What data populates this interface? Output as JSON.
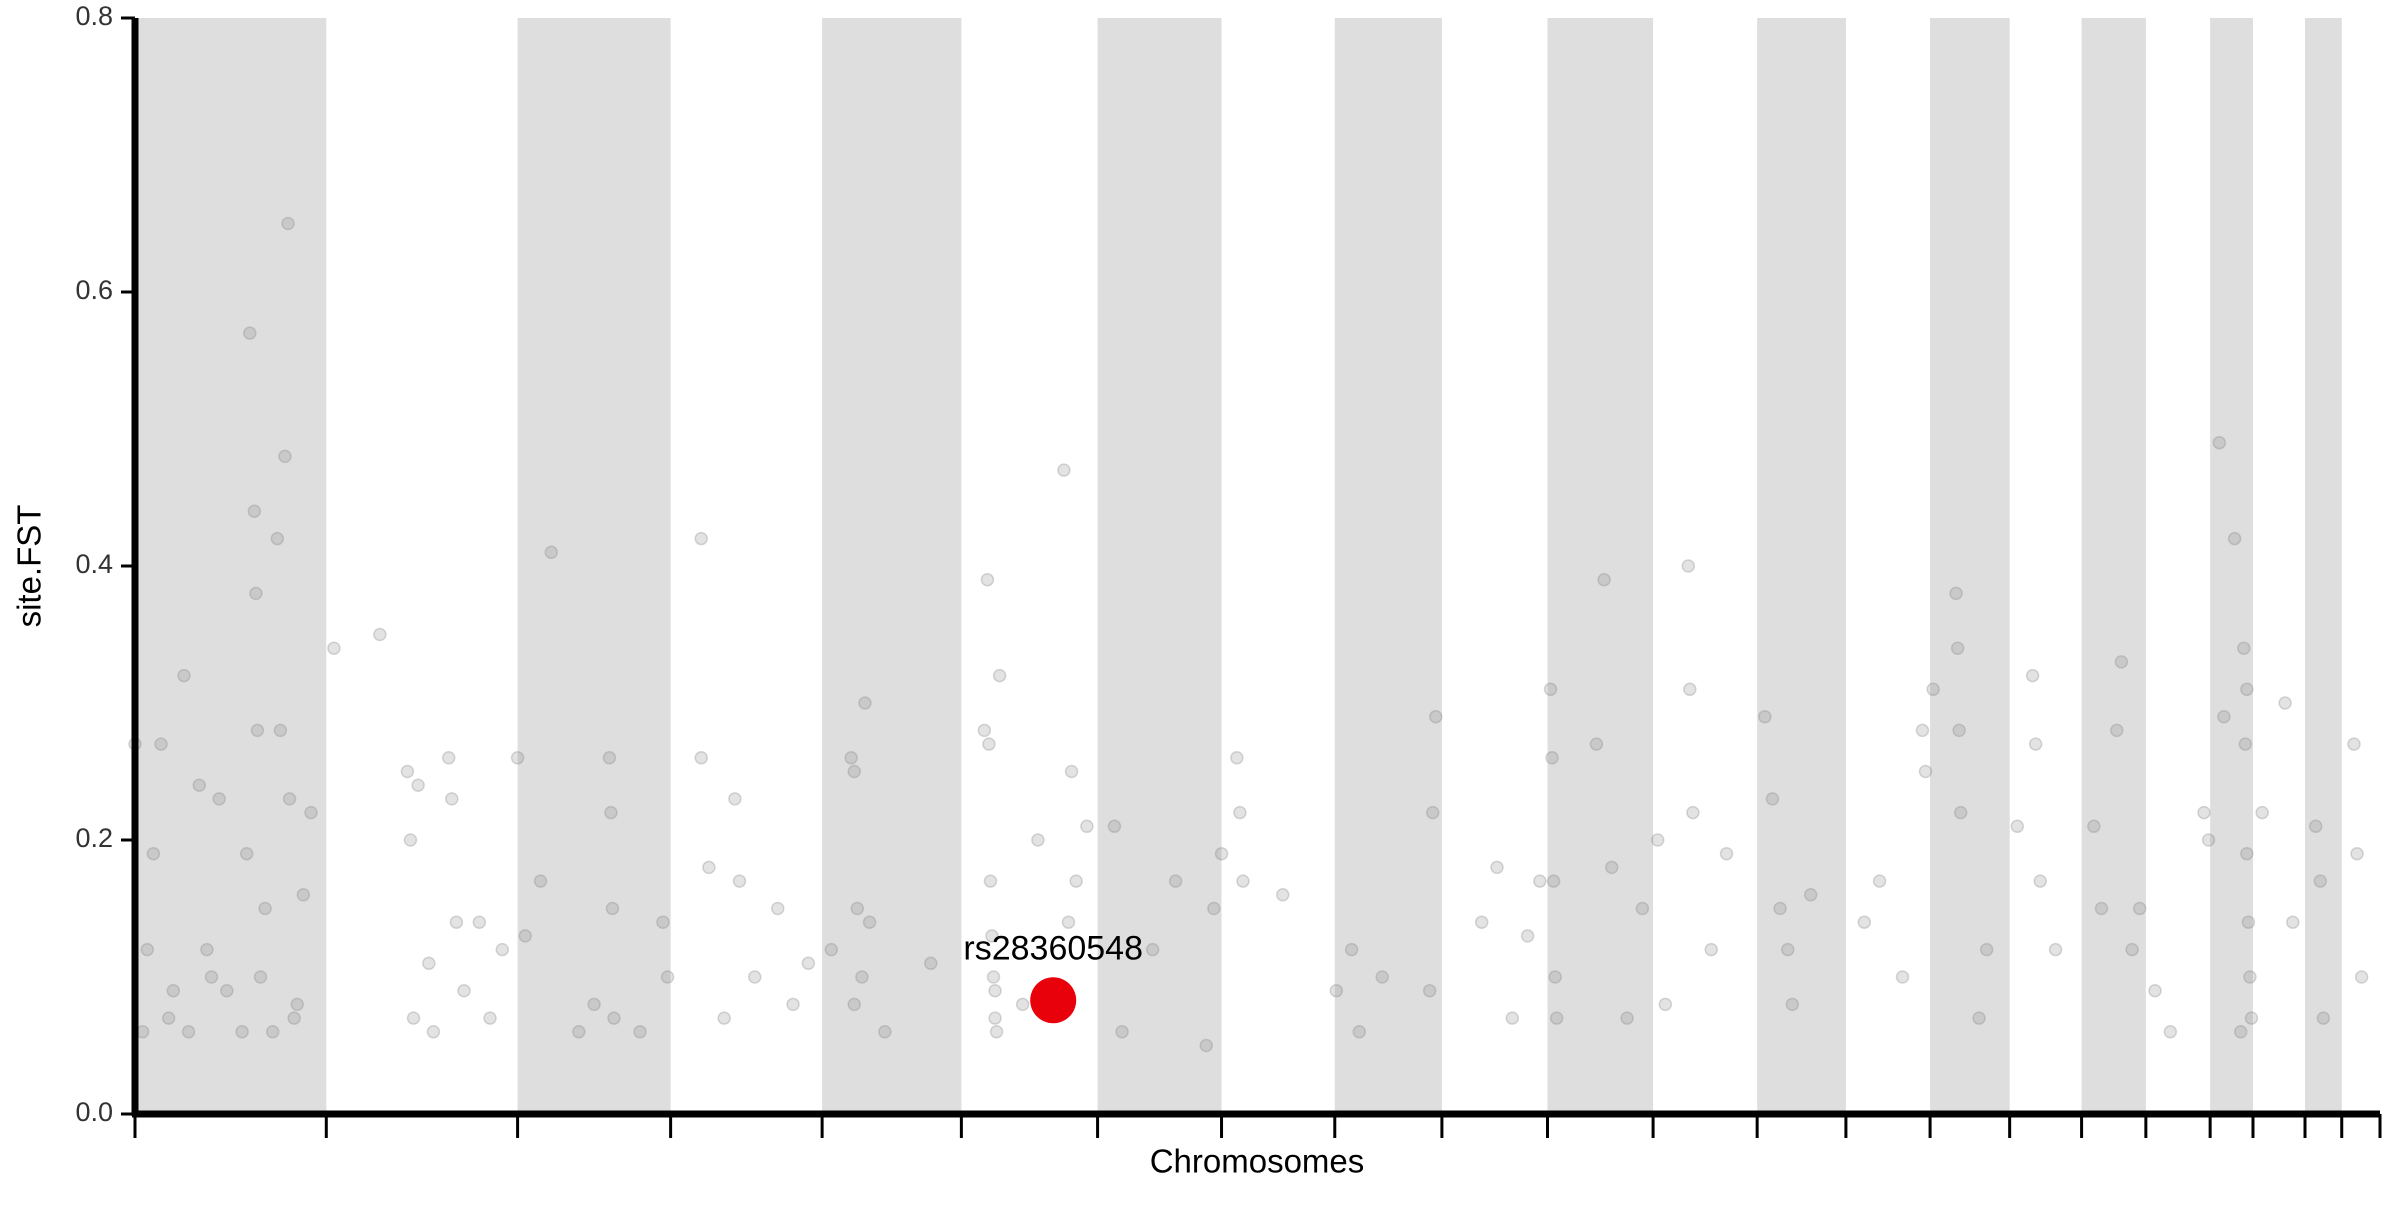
{
  "chart_data": {
    "type": "scatter",
    "y_label": "site.FST",
    "x_label": "Chromosomes",
    "xlim": [
      0,
      1467
    ],
    "ylim": [
      0,
      0.8
    ],
    "yticks": [
      {
        "value": 0,
        "label": "0.0"
      },
      0.2,
      0.4,
      0.6,
      0.8
    ],
    "chromosome_bounds": [
      0,
      125,
      250,
      350,
      449,
      540,
      629,
      710,
      784,
      854,
      923,
      992,
      1060,
      1118,
      1173,
      1225,
      1272,
      1314,
      1356,
      1384,
      1418,
      1442,
      1467
    ],
    "band_color": "#dedede",
    "point_color": "#808080",
    "x": [
      0,
      5,
      8,
      12,
      17,
      22,
      25,
      32,
      35,
      42,
      47,
      50,
      55,
      70,
      75,
      78,
      79,
      80,
      82,
      85,
      93,
      95,
      98,
      100,
      101,
      104,
      106,
      110,
      115,
      73,
      90,
      60,
      130,
      160,
      178,
      180,
      182,
      185,
      192,
      205,
      207,
      210,
      215,
      225,
      240,
      232,
      195,
      250,
      255,
      265,
      272,
      290,
      300,
      310,
      311,
      312,
      313,
      330,
      345,
      348,
      370,
      370,
      375,
      385,
      392,
      395,
      405,
      420,
      430,
      440,
      455,
      468,
      470,
      472,
      477,
      480,
      470,
      475,
      490,
      520,
      555,
      557,
      558,
      559,
      560,
      561,
      562,
      563,
      565,
      562,
      580,
      590,
      607,
      612,
      615,
      622,
      610,
      640,
      645,
      665,
      680,
      700,
      705,
      710,
      720,
      722,
      724,
      750,
      785,
      795,
      800,
      815,
      850,
      848,
      846,
      880,
      890,
      910,
      918,
      900,
      925,
      926,
      927,
      928,
      929,
      955,
      960,
      965,
      975,
      985,
      995,
      1000,
      1015,
      1016,
      1018,
      1030,
      1040,
      1065,
      1070,
      1075,
      1080,
      1083,
      1095,
      1130,
      1140,
      1155,
      1168,
      1170,
      1175,
      1190,
      1191,
      1192,
      1193,
      1210,
      1205,
      1230,
      1240,
      1242,
      1245,
      1255,
      1280,
      1285,
      1295,
      1298,
      1305,
      1310,
      1320,
      1330,
      1352,
      1355,
      1362,
      1365,
      1372,
      1378,
      1379,
      1380,
      1381,
      1382,
      1383,
      1380,
      1376,
      1390,
      1405,
      1410,
      1425,
      1428,
      1430,
      1450,
      1452,
      1455
    ],
    "values": [
      0.27,
      0.06,
      0.12,
      0.19,
      0.27,
      0.07,
      0.09,
      0.32,
      0.06,
      0.24,
      0.12,
      0.1,
      0.23,
      0.06,
      0.57,
      0.44,
      0.38,
      0.28,
      0.1,
      0.15,
      0.42,
      0.28,
      0.48,
      0.65,
      0.23,
      0.07,
      0.08,
      0.16,
      0.22,
      0.19,
      0.06,
      0.09,
      0.34,
      0.35,
      0.25,
      0.2,
      0.07,
      0.24,
      0.11,
      0.26,
      0.23,
      0.14,
      0.09,
      0.14,
      0.12,
      0.07,
      0.06,
      0.26,
      0.13,
      0.17,
      0.41,
      0.06,
      0.08,
      0.26,
      0.22,
      0.15,
      0.07,
      0.06,
      0.14,
      0.1,
      0.42,
      0.26,
      0.18,
      0.07,
      0.23,
      0.17,
      0.1,
      0.15,
      0.08,
      0.11,
      0.12,
      0.26,
      0.25,
      0.15,
      0.3,
      0.14,
      0.08,
      0.1,
      0.06,
      0.11,
      0.28,
      0.39,
      0.27,
      0.17,
      0.13,
      0.1,
      0.07,
      0.06,
      0.32,
      0.09,
      0.08,
      0.2,
      0.47,
      0.25,
      0.17,
      0.21,
      0.14,
      0.21,
      0.06,
      0.12,
      0.17,
      0.05,
      0.15,
      0.19,
      0.26,
      0.22,
      0.17,
      0.16,
      0.09,
      0.12,
      0.06,
      0.1,
      0.29,
      0.22,
      0.09,
      0.14,
      0.18,
      0.13,
      0.17,
      0.07,
      0.31,
      0.26,
      0.17,
      0.1,
      0.07,
      0.27,
      0.39,
      0.18,
      0.07,
      0.15,
      0.2,
      0.08,
      0.4,
      0.31,
      0.22,
      0.12,
      0.19,
      0.29,
      0.23,
      0.15,
      0.12,
      0.08,
      0.16,
      0.14,
      0.17,
      0.1,
      0.28,
      0.25,
      0.31,
      0.38,
      0.34,
      0.28,
      0.22,
      0.12,
      0.07,
      0.21,
      0.32,
      0.27,
      0.17,
      0.12,
      0.21,
      0.15,
      0.28,
      0.33,
      0.12,
      0.15,
      0.09,
      0.06,
      0.22,
      0.2,
      0.49,
      0.29,
      0.42,
      0.34,
      0.27,
      0.19,
      0.14,
      0.1,
      0.07,
      0.31,
      0.06,
      0.22,
      0.3,
      0.14,
      0.21,
      0.17,
      0.07,
      0.27,
      0.19,
      0.1
    ],
    "highlight": {
      "label": "rs28360548",
      "x": 600,
      "value": 0.083,
      "color": "#e8000b"
    }
  }
}
